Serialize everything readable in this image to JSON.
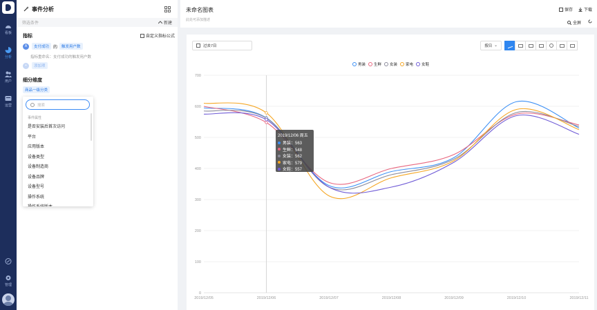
{
  "sidebar": {
    "items": [
      {
        "label": "看板",
        "icon": "dashboard-icon"
      },
      {
        "label": "分析",
        "icon": "analysis-icon"
      },
      {
        "label": "用户",
        "icon": "users-icon"
      },
      {
        "label": "运营",
        "icon": "operations-icon"
      }
    ],
    "bottom": [
      {
        "label": "",
        "icon": "link-icon"
      },
      {
        "label": "管理",
        "icon": "settings-icon"
      }
    ]
  },
  "panel": {
    "title": "事件分析",
    "subbar_placeholder": "筛选条件",
    "new_label": "新建",
    "metrics_title": "指标",
    "custom_formula": "自定义指标公式",
    "metric_badge": "A",
    "event_chip": "支付成功",
    "of_label": "的",
    "measure_chip": "触发用户数",
    "metric_name": "指标重命名：支付成功的触发用户数",
    "add_badge": "+",
    "add_chip": "添加项",
    "breakdown_title": "细分维度",
    "breakdown_chip": "商品一级分类",
    "search_placeholder": "搜索",
    "dropdown_group": "事件属性",
    "dropdown_items": [
      "是否安装后首次访问",
      "平台",
      "应用版本",
      "设备类型",
      "设备制造商",
      "设备品牌",
      "设备型号",
      "操作系统",
      "操作系统版本"
    ]
  },
  "main": {
    "chart_name": "未命名图表",
    "chart_desc": "此处可添加描述",
    "save_label": "保存",
    "download_label": "下载",
    "fullscreen_label": "全屏",
    "date_range": "过去7日",
    "granularity": "按日",
    "chart_types": [
      "line-chart-icon",
      "compare-icon",
      "area-chart-icon",
      "bar-chart-icon",
      "pie-chart-icon",
      "stacked-bar-icon",
      "table-icon"
    ]
  },
  "tooltip": {
    "title": "2019/12/06 周五",
    "rows": [
      {
        "label": "男装：563",
        "color": "#3b8ff5"
      },
      {
        "label": "生鲜：548",
        "color": "#e8667f"
      },
      {
        "label": "女装：562",
        "color": "#8a8a9a"
      },
      {
        "label": "家电：579",
        "color": "#f5a623"
      },
      {
        "label": "女鞋：557",
        "color": "#6f5bd6"
      }
    ]
  },
  "chart_data": {
    "type": "line",
    "x": [
      "2019/12/05",
      "2019/12/06",
      "2019/12/07",
      "2019/12/08",
      "2019/12/09",
      "2019/12/10",
      "2019/12/11"
    ],
    "ylim": [
      0,
      700
    ],
    "yticks": [
      0,
      100,
      200,
      300,
      400,
      500,
      600,
      700
    ],
    "grid": true,
    "legend_position": "top-center",
    "series": [
      {
        "name": "男装",
        "color": "#3b8ff5",
        "values": [
          595,
          563,
          345,
          390,
          435,
          615,
          530
        ]
      },
      {
        "name": "生鲜",
        "color": "#e8667f",
        "values": [
          600,
          548,
          355,
          400,
          445,
          575,
          540
        ]
      },
      {
        "name": "女装",
        "color": "#8a8a9a",
        "values": [
          585,
          562,
          340,
          380,
          430,
          580,
          535
        ]
      },
      {
        "name": "家电",
        "color": "#f5a623",
        "values": [
          610,
          579,
          312,
          370,
          425,
          590,
          525
        ]
      },
      {
        "name": "女鞋",
        "color": "#6f5bd6",
        "values": [
          575,
          557,
          340,
          340,
          420,
          570,
          510
        ]
      }
    ]
  }
}
